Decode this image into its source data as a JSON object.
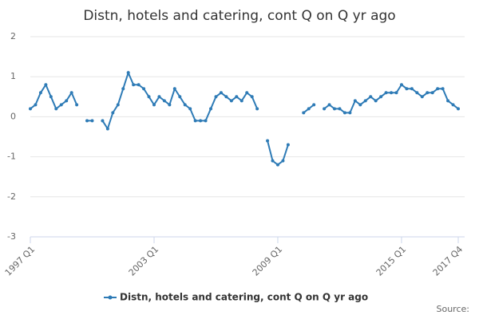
{
  "chart_data": {
    "type": "line",
    "title": "Distn, hotels and catering, cont Q on Q yr ago",
    "categories": [
      "1997 Q1",
      null,
      null,
      null,
      null,
      null,
      null,
      null,
      null,
      null,
      null,
      null,
      null,
      null,
      null,
      null,
      null,
      null,
      null,
      null,
      null,
      null,
      null,
      null,
      "2003 Q1",
      null,
      null,
      null,
      null,
      null,
      null,
      null,
      null,
      null,
      null,
      null,
      null,
      null,
      null,
      null,
      null,
      null,
      null,
      null,
      null,
      null,
      null,
      null,
      "2009 Q1",
      null,
      null,
      null,
      null,
      null,
      null,
      null,
      null,
      null,
      null,
      null,
      null,
      null,
      null,
      null,
      null,
      null,
      null,
      null,
      null,
      null,
      null,
      null,
      "2015 Q1",
      null,
      null,
      null,
      null,
      null,
      null,
      null,
      null,
      null,
      null,
      "2017 Q4"
    ],
    "series": [
      {
        "name": "Distn, hotels and catering, cont Q on Q yr ago",
        "color": "#2e7bb6",
        "values": [
          0.2,
          0.3,
          0.6,
          0.8,
          0.5,
          0.2,
          0.3,
          0.4,
          0.6,
          0.3,
          null,
          -0.1,
          -0.1,
          null,
          -0.1,
          -0.3,
          0.1,
          0.3,
          0.7,
          1.1,
          0.8,
          0.8,
          0.7,
          0.5,
          0.3,
          0.5,
          0.4,
          0.3,
          0.7,
          0.5,
          0.3,
          0.2,
          -0.1,
          -0.1,
          -0.1,
          0.2,
          0.5,
          0.6,
          0.5,
          0.4,
          0.5,
          0.4,
          0.6,
          0.5,
          0.2,
          null,
          -0.6,
          -1.1,
          -1.2,
          -1.1,
          -0.7,
          null,
          null,
          0.1,
          0.2,
          0.3,
          null,
          0.2,
          0.3,
          0.2,
          0.2,
          0.1,
          0.1,
          0.4,
          0.3,
          0.4,
          0.5,
          0.4,
          0.5,
          0.6,
          0.6,
          0.6,
          0.8,
          0.7,
          0.7,
          0.6,
          0.5,
          0.6,
          0.6,
          0.7,
          0.7,
          0.4,
          0.3,
          0.2
        ]
      }
    ],
    "ylim": [
      -3,
      2
    ],
    "yticks": [
      -3,
      -2,
      -1,
      0,
      1,
      2
    ],
    "grid": true,
    "legend": "bottom",
    "source": "Source:"
  }
}
